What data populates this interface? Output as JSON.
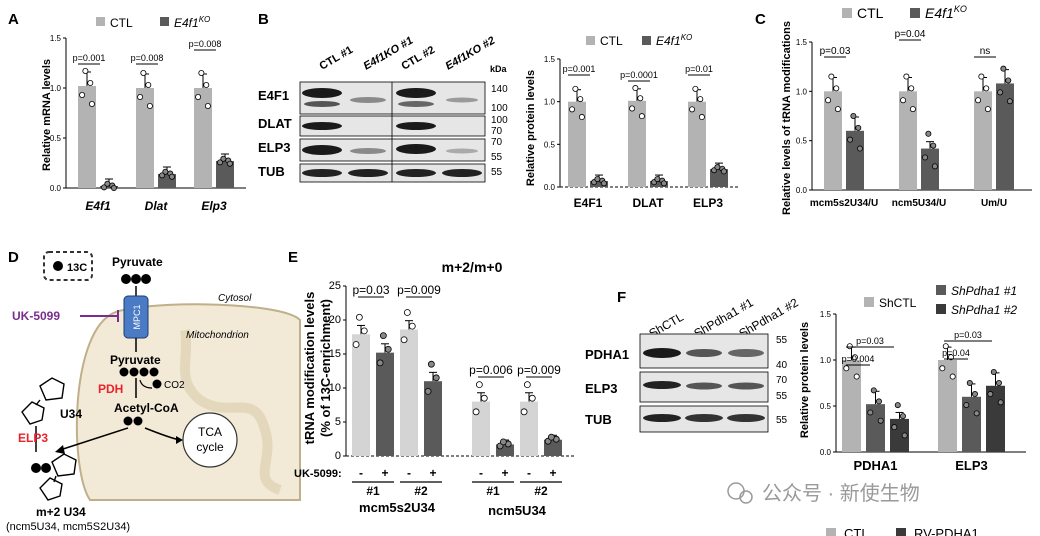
{
  "colors": {
    "ctl": "#b3b3b3",
    "ko": "#5a5a5a",
    "light": "#d4d4d4",
    "red": "#e8232a",
    "purple": "#7b2d8e",
    "mito": "#f2ead6",
    "mito_edge": "#bfb08a",
    "mpc": "#4a7bc4"
  },
  "panels": {
    "A": "A",
    "B": "B",
    "C": "C",
    "D": "D",
    "E": "E",
    "F": "F"
  },
  "legend": {
    "ctl": "CTL",
    "ko": "E4f1",
    "ko_sup": "KO",
    "shctl": "ShCTL",
    "sh1": "ShPdha1 #1",
    "sh2": "ShPdha1 #2",
    "bottom_ctl": "CTL",
    "bottom_rv": "RV-PDHA1"
  },
  "blotB": {
    "kda": "kDa",
    "lanes": [
      "CTL #1",
      "E4f1KO #1",
      "CTL #2",
      "E4f1KO #2"
    ],
    "rows": [
      "E4F1",
      "DLAT",
      "ELP3",
      "TUB"
    ],
    "mw": [
      "140",
      "100",
      "100",
      "70",
      "70",
      "55",
      "55"
    ]
  },
  "blotF": {
    "lanes": [
      "ShCTL",
      "ShPdha1 #1",
      "ShPdha1 #2"
    ],
    "rows": [
      "PDHA1",
      "ELP3",
      "TUB"
    ],
    "mw": [
      "55",
      "40",
      "70",
      "55",
      "55"
    ]
  },
  "diagram": {
    "label13c": "13C",
    "pyruvate": "Pyruvate",
    "uk": "UK-5099",
    "mpc": "MPC1",
    "cytosol": "Cytosol",
    "mito": "Mitochondrion",
    "pyruvate2": "Pyruvate",
    "pdh": "PDH",
    "co2": "CO2",
    "acetyl": "Acetyl-CoA",
    "tca1": "TCA",
    "tca2": "cycle",
    "u34": "U34",
    "elp3": "ELP3",
    "m2": "m+2 U34",
    "m2sub": "(ncm5U34, mcm5S2U34)"
  },
  "watermark": "公众号 · 新使生物",
  "chart_data": [
    {
      "id": "A",
      "type": "bar",
      "ylabel": "Relative mRNA levels",
      "ylim": [
        0,
        1.5
      ],
      "yticks": [
        "0.0",
        "0.5",
        "1.0",
        "1.5"
      ],
      "categories": [
        "E4f1",
        "Dlat",
        "Elp3"
      ],
      "series": [
        {
          "name": "CTL",
          "values": [
            1.02,
            1.0,
            1.0
          ]
        },
        {
          "name": "E4f1KO",
          "values": [
            0.02,
            0.14,
            0.27
          ]
        }
      ],
      "pvalues": [
        "p=0.001",
        "p=0.008",
        "p=0.008"
      ]
    },
    {
      "id": "B",
      "type": "bar",
      "ylabel": "Relative protein levels",
      "ylim": [
        0,
        1.5
      ],
      "yticks": [
        "0.0",
        "0.5",
        "1.0",
        "1.5"
      ],
      "categories": [
        "E4F1",
        "DLAT",
        "ELP3"
      ],
      "series": [
        {
          "name": "CTL",
          "values": [
            1.0,
            1.01,
            1.0
          ]
        },
        {
          "name": "E4f1KO",
          "values": [
            0.07,
            0.07,
            0.21
          ]
        }
      ],
      "pvalues": [
        "p=0.001",
        "p=0.0001",
        "p=0.01"
      ]
    },
    {
      "id": "C",
      "type": "bar",
      "ylabel": "Relative levels of tRNA modifications",
      "ylim": [
        0,
        1.5
      ],
      "yticks": [
        "0.0",
        "0.5",
        "1.0",
        "1.5"
      ],
      "categories": [
        "mcm5s2U34/U",
        "ncm5U34/U",
        "Um/U"
      ],
      "series": [
        {
          "name": "CTL",
          "values": [
            1.0,
            1.0,
            1.0
          ]
        },
        {
          "name": "E4f1KO",
          "values": [
            0.6,
            0.42,
            1.08
          ]
        }
      ],
      "pvalues": [
        "p=0.03",
        "p=0.04",
        "ns"
      ]
    },
    {
      "id": "E",
      "type": "bar",
      "title": "m+2/m+0",
      "ylabel1": "tRNA modification levels",
      "ylabel2": "(% of 13C-enrichment)",
      "ylim": [
        0,
        25
      ],
      "yticks": [
        "0",
        "5",
        "10",
        "15",
        "20",
        "25"
      ],
      "categories": [
        "mcm5s2U34 #1",
        "mcm5s2U34 #2",
        "ncm5U34 #1",
        "ncm5U34 #2"
      ],
      "series": [
        {
          "name": "UK-5099 -",
          "values": [
            17.9,
            18.6,
            8.0,
            8.0
          ]
        },
        {
          "name": "UK-5099 +",
          "values": [
            15.2,
            11.0,
            1.7,
            2.4
          ]
        }
      ],
      "pvalues": [
        "p=0.03",
        "p=0.009",
        "p=0.006",
        "p=0.009"
      ],
      "xrow": "UK-5099:",
      "signs": [
        "-",
        "+",
        "-",
        "+",
        "-",
        "+",
        "-",
        "+"
      ],
      "reps": [
        "#1",
        "#2",
        "#1",
        "#2"
      ],
      "groups": [
        "mcm5s2U34",
        "ncm5U34"
      ]
    },
    {
      "id": "F",
      "type": "bar",
      "ylabel": "Relative protein levels",
      "ylim": [
        0,
        1.5
      ],
      "yticks": [
        "0.0",
        "0.5",
        "1.0",
        "1.5"
      ],
      "categories": [
        "PDHA1",
        "ELP3"
      ],
      "series": [
        {
          "name": "ShCTL",
          "values": [
            1.0,
            1.0
          ]
        },
        {
          "name": "ShPdha1 #1",
          "values": [
            0.52,
            0.6
          ]
        },
        {
          "name": "ShPdha1 #2",
          "values": [
            0.36,
            0.72
          ]
        }
      ],
      "pvalues": [
        "p=0.004",
        "p=0.03",
        "p=0.04",
        "p=0.03"
      ]
    }
  ]
}
